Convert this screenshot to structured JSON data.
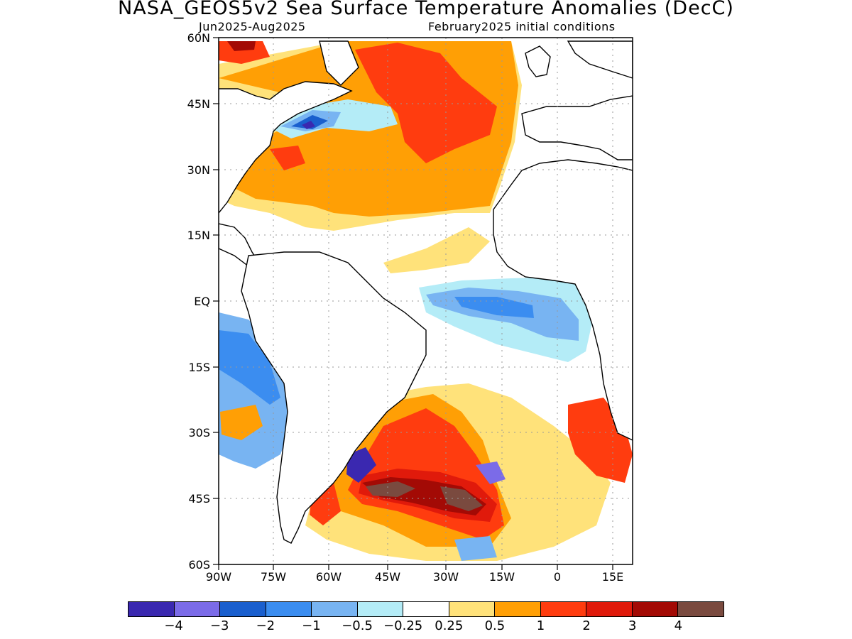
{
  "title": "NASA_GEOS5v2 Sea Surface Temperature Anomalies (DecC)",
  "subtitle_left": "Jun2025-Aug2025",
  "subtitle_right": "February2025 initial conditions",
  "lat_labels": [
    "60N",
    "45N",
    "30N",
    "15N",
    "EQ",
    "15S",
    "30S",
    "45S",
    "60S"
  ],
  "lon_labels": [
    "90W",
    "75W",
    "60W",
    "45W",
    "30W",
    "15W",
    "0",
    "15E"
  ],
  "colorbar": {
    "colors": [
      "#3a28b0",
      "#7b6be8",
      "#1a5fce",
      "#3b8df0",
      "#78b4f2",
      "#b4ecf7",
      "#ffffff",
      "#ffe27a",
      "#ff9f05",
      "#ff3c0f",
      "#e01a0b",
      "#a30a05",
      "#7a4a3f"
    ],
    "labels": [
      "−4",
      "−3",
      "−2",
      "−1",
      "−0.5",
      "−0.25",
      "0.25",
      "0.5",
      "1",
      "2",
      "3",
      "4"
    ]
  }
}
